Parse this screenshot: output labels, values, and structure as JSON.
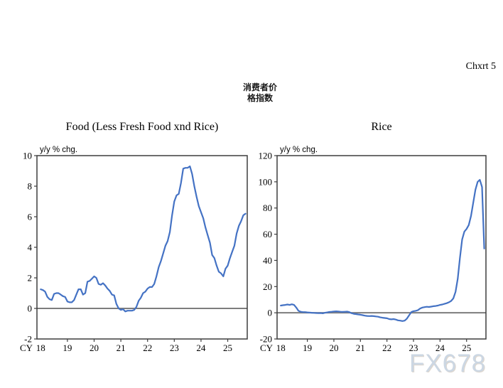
{
  "page": {
    "corner_label": "Chxrt 5",
    "header_title_lines": [
      "消费者价",
      "格指数"
    ],
    "watermark": "FX678",
    "background": "#ffffff"
  },
  "colors": {
    "line": "#4472C4",
    "frame": "#3d3d3d",
    "zero_line": "#7d7d7d",
    "text": "#000000",
    "watermark": "#ccd7e3"
  },
  "chart_data": [
    {
      "type": "line",
      "title": "Food (Less Fresh Food xnd Rice)",
      "unit_label": "y/y % chg.",
      "x_axis_prefix": "CY",
      "xlabel": "",
      "ylabel": "y/y % chg.",
      "grid": false,
      "legend": "none",
      "x_ticks": [
        18,
        19,
        20,
        21,
        22,
        23,
        24,
        25
      ],
      "xlim": [
        17.86,
        25.73
      ],
      "y_ticks": [
        10,
        8,
        6,
        4,
        2,
        0,
        -2
      ],
      "ylim": [
        -2,
        10
      ],
      "zero_line": true,
      "x_start_year": 18,
      "points_per_year": 12,
      "values": [
        1.25,
        1.2,
        1.1,
        0.75,
        0.6,
        0.55,
        0.95,
        1.0,
        1.0,
        0.9,
        0.8,
        0.75,
        0.45,
        0.4,
        0.4,
        0.55,
        0.9,
        1.25,
        1.25,
        0.9,
        1.0,
        1.75,
        1.8,
        1.95,
        2.1,
        2.0,
        1.6,
        1.55,
        1.65,
        1.5,
        1.3,
        1.15,
        0.9,
        0.85,
        0.3,
        0.0,
        -0.1,
        -0.05,
        -0.2,
        -0.15,
        -0.15,
        -0.15,
        -0.1,
        0.1,
        0.5,
        0.7,
        1.0,
        1.1,
        1.3,
        1.4,
        1.4,
        1.6,
        2.1,
        2.7,
        3.1,
        3.6,
        4.1,
        4.4,
        5.0,
        6.1,
        7.0,
        7.4,
        7.5,
        8.2,
        9.15,
        9.2,
        9.2,
        9.3,
        8.8,
        8.0,
        7.3,
        6.7,
        6.3,
        5.9,
        5.3,
        4.8,
        4.3,
        3.5,
        3.3,
        2.8,
        2.4,
        2.3,
        2.1,
        2.6,
        2.8,
        3.3,
        3.7,
        4.1,
        4.9,
        5.4,
        5.7,
        6.1,
        6.2
      ]
    },
    {
      "type": "line",
      "title": "Rice",
      "unit_label": "y/y % chg.",
      "x_axis_prefix": "CY",
      "xlabel": "",
      "ylabel": "y/y % chg.",
      "grid": false,
      "legend": "none",
      "x_ticks": [
        18,
        19,
        20,
        21,
        22,
        23,
        24,
        25
      ],
      "xlim": [
        17.86,
        25.73
      ],
      "y_ticks": [
        120,
        100,
        80,
        60,
        40,
        20,
        0,
        -20
      ],
      "ylim": [
        -20,
        120
      ],
      "zero_line": true,
      "x_start_year": 18,
      "points_per_year": 12,
      "values": [
        5.5,
        5.8,
        6.0,
        6.3,
        6.0,
        6.5,
        6.0,
        4.0,
        1.5,
        0.8,
        0.5,
        0.5,
        0.3,
        0.2,
        0.0,
        -0.1,
        -0.2,
        -0.3,
        -0.2,
        -0.4,
        0.0,
        0.3,
        0.6,
        0.8,
        1.0,
        1.1,
        1.0,
        0.8,
        0.7,
        0.8,
        0.9,
        0.5,
        -0.3,
        -0.8,
        -1.0,
        -1.3,
        -1.5,
        -1.8,
        -2.2,
        -2.4,
        -2.5,
        -2.4,
        -2.6,
        -2.8,
        -3.0,
        -3.5,
        -3.8,
        -4.0,
        -4.2,
        -4.8,
        -5.0,
        -4.8,
        -5.2,
        -5.8,
        -6.0,
        -6.3,
        -6.0,
        -4.5,
        -2.0,
        0.5,
        1.2,
        1.5,
        2.0,
        3.3,
        4.0,
        4.3,
        4.6,
        4.4,
        4.7,
        5.0,
        5.2,
        5.5,
        6.0,
        6.3,
        6.8,
        7.3,
        8.0,
        9.0,
        11.0,
        16.0,
        26.0,
        42.0,
        56.0,
        62.0,
        64.0,
        67.0,
        74.0,
        84.0,
        94.0,
        100.0,
        101.5,
        96.0,
        49.0
      ]
    }
  ]
}
